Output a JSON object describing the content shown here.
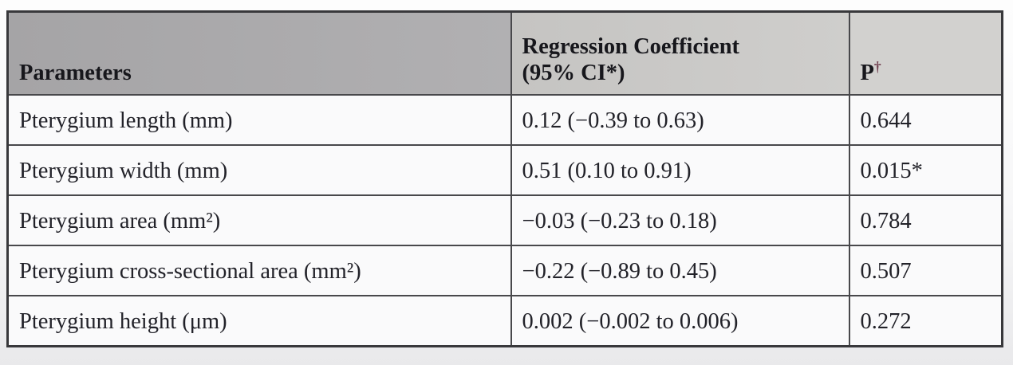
{
  "table": {
    "columns": [
      {
        "label": "Parameters"
      },
      {
        "label_line1": "Regression Coefficient",
        "label_line2": "(95% CI*)"
      },
      {
        "label": "P",
        "footnote_marker": "†"
      }
    ],
    "rows": [
      {
        "parameter": "Pterygium length (mm)",
        "coefficient": "0.12 (−0.39 to 0.63)",
        "p": "0.644"
      },
      {
        "parameter": "Pterygium width (mm)",
        "coefficient": "0.51 (0.10 to 0.91)",
        "p": "0.015*"
      },
      {
        "parameter": "Pterygium area (mm²)",
        "coefficient": "−0.03 (−0.23 to 0.18)",
        "p": "0.784"
      },
      {
        "parameter": "Pterygium cross-sectional area (mm²)",
        "coefficient": "−0.22 (−0.89 to 0.45)",
        "p": "0.507"
      },
      {
        "parameter": "Pterygium height (μm)",
        "coefficient": "0.002 (−0.002 to 0.006)",
        "p": "0.272"
      }
    ],
    "colors": {
      "header_bg_left": "#a5a4a6",
      "header_bg_right": "#d2d1cf",
      "body_bg": "#fafafb",
      "border": "#48484b",
      "text": "#222229",
      "dagger": "#6f3e4e"
    }
  }
}
